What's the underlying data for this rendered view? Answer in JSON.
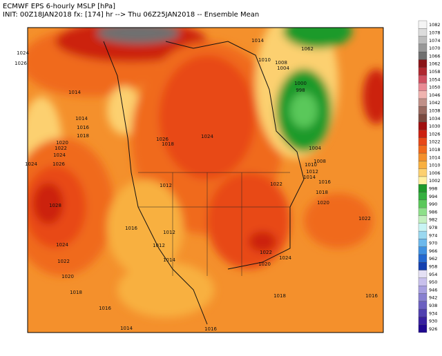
{
  "header": {
    "title": "ECMWF EPS 6-hourly MSLP [hPa]",
    "subtitle": "INIT: 00Z18JAN2018 fx: [174] hr --> Thu 06Z25JAN2018 -- Ensemble Mean"
  },
  "colorbar": [
    {
      "label": "1082",
      "color": "#f4f4f4"
    },
    {
      "label": "1078",
      "color": "#dcdcdc"
    },
    {
      "label": "1074",
      "color": "#bcbcbc"
    },
    {
      "label": "1070",
      "color": "#989898"
    },
    {
      "label": "1066",
      "color": "#707070"
    },
    {
      "label": "1062",
      "color": "#8a1418"
    },
    {
      "label": "1058",
      "color": "#b02830"
    },
    {
      "label": "1054",
      "color": "#d05060"
    },
    {
      "label": "1050",
      "color": "#e88a94"
    },
    {
      "label": "1046",
      "color": "#f0b4b0"
    },
    {
      "label": "1042",
      "color": "#c09088"
    },
    {
      "label": "1038",
      "color": "#9a6a60"
    },
    {
      "label": "1034",
      "color": "#7a4a40"
    },
    {
      "label": "1030",
      "color": "#a01010"
    },
    {
      "label": "1026",
      "color": "#cc2010"
    },
    {
      "label": "1022",
      "color": "#e84818"
    },
    {
      "label": "1018",
      "color": "#f06a1c"
    },
    {
      "label": "1014",
      "color": "#f4902c"
    },
    {
      "label": "1010",
      "color": "#f8b040"
    },
    {
      "label": "1006",
      "color": "#fcd070"
    },
    {
      "label": "1002",
      "color": "#fff0a0"
    },
    {
      "label": "998",
      "color": "#1e9a2a"
    },
    {
      "label": "994",
      "color": "#34b040"
    },
    {
      "label": "990",
      "color": "#5ac85a"
    },
    {
      "label": "986",
      "color": "#8ee08a"
    },
    {
      "label": "982",
      "color": "#c4f0c0"
    },
    {
      "label": "978",
      "color": "#c8f4f4"
    },
    {
      "label": "974",
      "color": "#9ad8f0"
    },
    {
      "label": "970",
      "color": "#6cb8ec"
    },
    {
      "label": "966",
      "color": "#4090e0"
    },
    {
      "label": "962",
      "color": "#2468d0"
    },
    {
      "label": "958",
      "color": "#1440b0"
    },
    {
      "label": "954",
      "color": "#e4e0f4"
    },
    {
      "label": "950",
      "color": "#c8c0ec"
    },
    {
      "label": "946",
      "color": "#a8a0e0"
    },
    {
      "label": "942",
      "color": "#8880d0"
    },
    {
      "label": "938",
      "color": "#6c60c0"
    },
    {
      "label": "934",
      "color": "#5040b0"
    },
    {
      "label": "930",
      "color": "#3820a0"
    },
    {
      "label": "926",
      "color": "#200890"
    }
  ],
  "contour_labels": [
    "1024",
    "1026",
    "1028",
    "1024",
    "1022",
    "1020",
    "1018",
    "1016",
    "1014",
    "1014",
    "1014",
    "1016",
    "1018",
    "1020",
    "1022",
    "1024",
    "1024",
    "1026",
    "1012",
    "1012",
    "1014",
    "1016",
    "1012",
    "1018",
    "1026",
    "1014",
    "1010",
    "1008",
    "1004",
    "1000",
    "998",
    "1004",
    "1008",
    "1010",
    "1012",
    "1014",
    "1016",
    "1018",
    "1020",
    "1022",
    "1022",
    "1024",
    "1022",
    "1020",
    "1018",
    "1016",
    "1016",
    "1062",
    "1024"
  ]
}
